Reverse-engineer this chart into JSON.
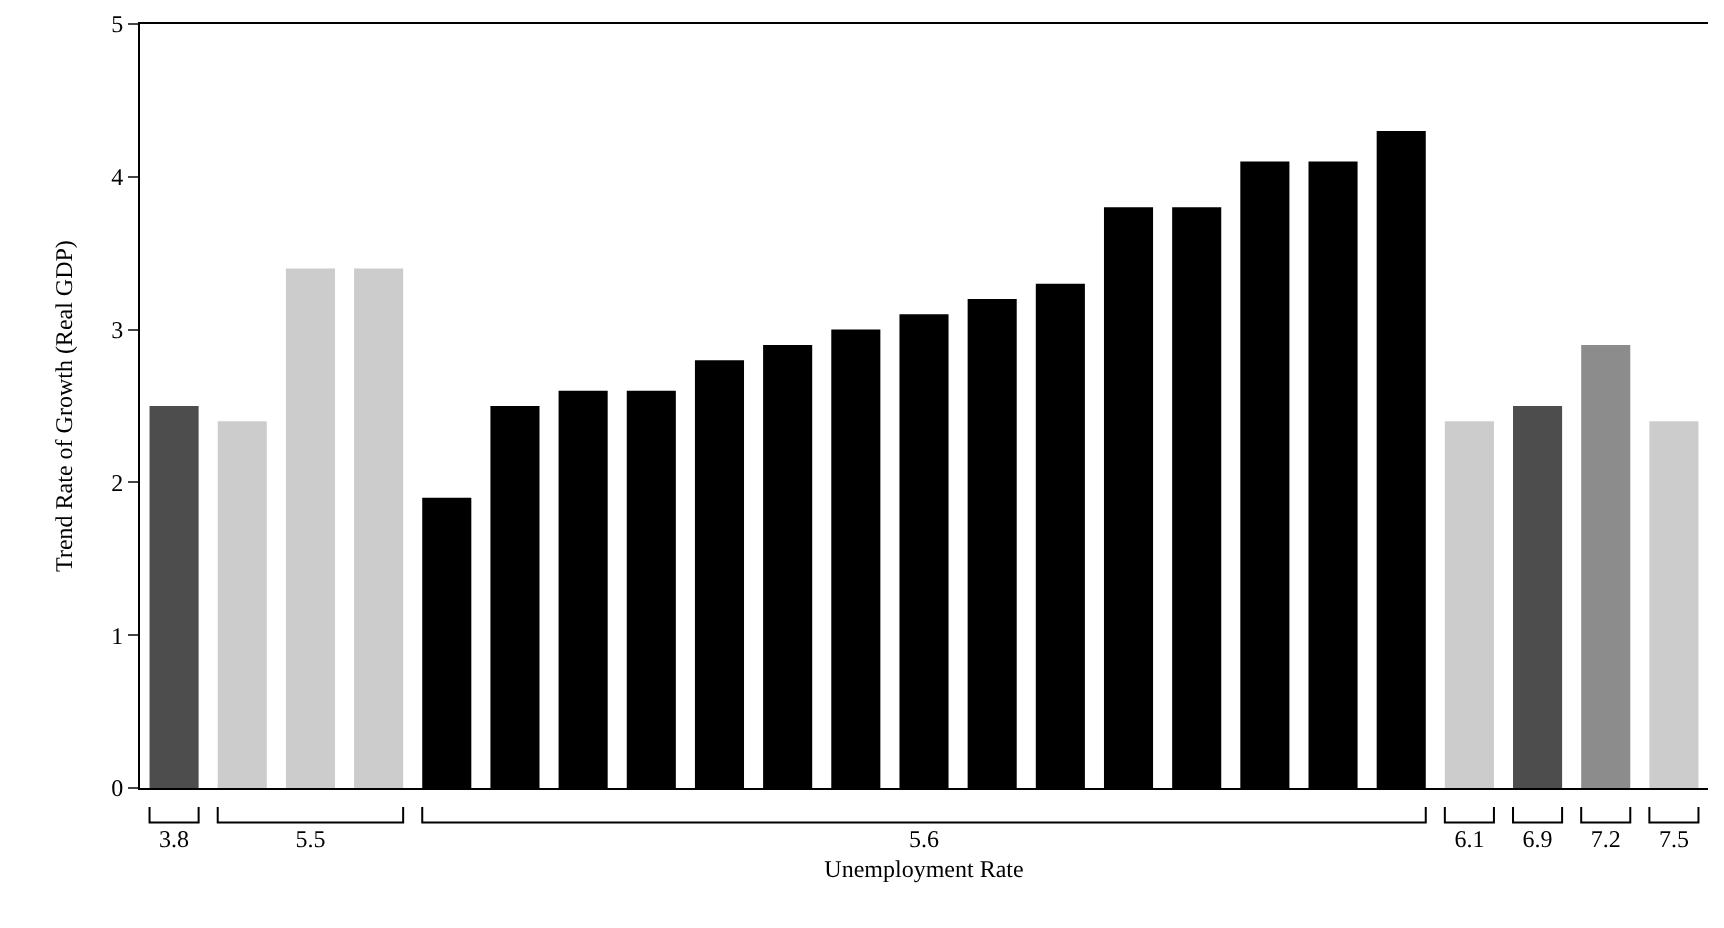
{
  "chart_data": {
    "type": "bar",
    "xlabel": "Unemployment Rate",
    "ylabel": "Trend Rate of Growth (Real GDP)",
    "categories": [
      "3.8",
      null,
      "5.5",
      null,
      null,
      null,
      null,
      null,
      null,
      null,
      null,
      "5.6",
      null,
      null,
      null,
      null,
      null,
      null,
      null,
      "6.1",
      "6.9",
      "7.2",
      "7.5"
    ],
    "values": [
      2.5,
      2.4,
      3.4,
      3.4,
      1.9,
      2.5,
      2.6,
      2.6,
      2.8,
      2.9,
      3.0,
      3.1,
      3.2,
      3.3,
      3.8,
      3.8,
      4.1,
      4.1,
      4.3,
      2.4,
      2.5,
      2.9,
      2.4
    ],
    "colors": [
      "#4d4d4d",
      "#cccccc",
      "#cccccc",
      "#cccccc",
      "#000000",
      "#000000",
      "#000000",
      "#000000",
      "#000000",
      "#000000",
      "#000000",
      "#000000",
      "#000000",
      "#000000",
      "#000000",
      "#000000",
      "#000000",
      "#000000",
      "#000000",
      "#cccccc",
      "#4d4d4d",
      "#8c8c8c",
      "#cccccc"
    ],
    "ylim": [
      0,
      5
    ],
    "yticks": [
      0,
      1,
      2,
      3,
      4,
      5
    ]
  }
}
